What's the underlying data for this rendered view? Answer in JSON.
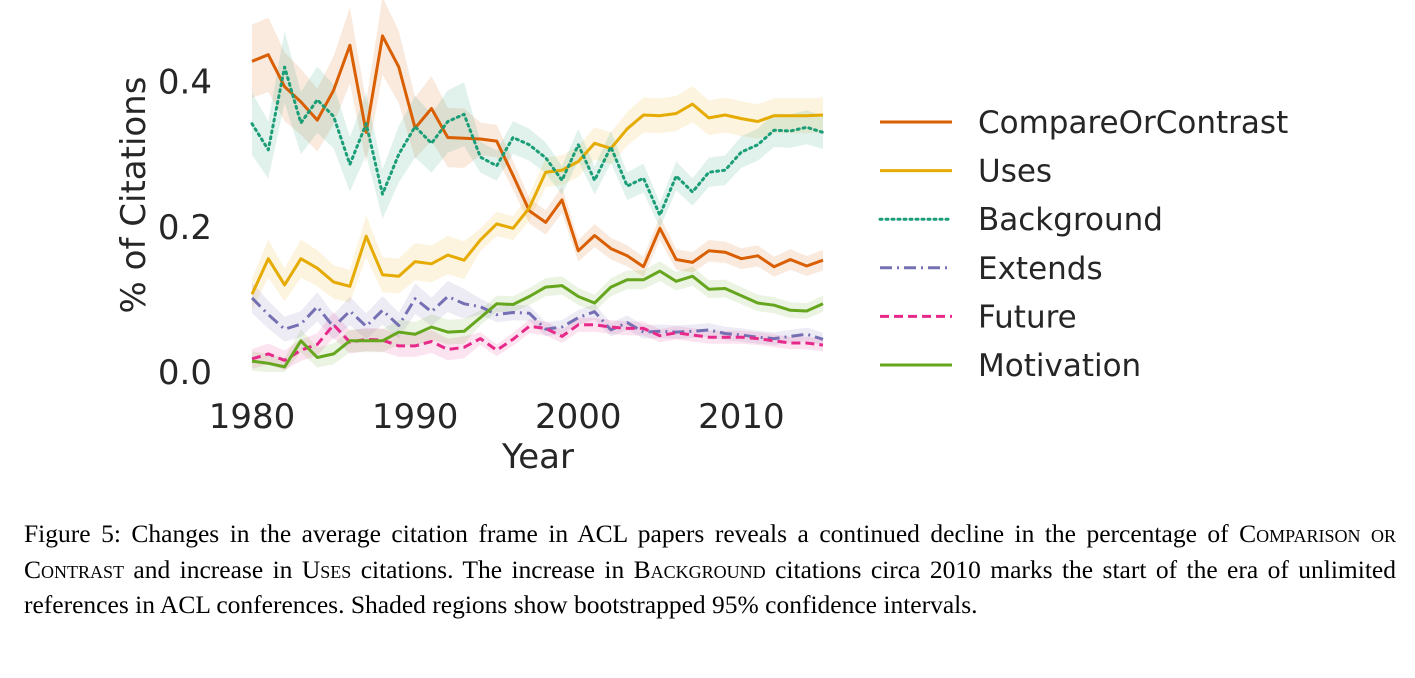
{
  "chart_data": {
    "type": "line",
    "xlabel": "Year",
    "ylabel": "% of Citations",
    "xlim": [
      1980,
      2015
    ],
    "ylim": [
      0.0,
      0.47
    ],
    "xticks": [
      "1980",
      "1990",
      "2000",
      "2010"
    ],
    "yticks": [
      "0.0",
      "0.2",
      "0.4"
    ],
    "grid": false,
    "legend_position": "right",
    "confidence_bands": true,
    "x": [
      1980,
      1981,
      1982,
      1983,
      1984,
      1985,
      1986,
      1987,
      1988,
      1989,
      1990,
      1991,
      1992,
      1993,
      1994,
      1995,
      1996,
      1997,
      1998,
      1999,
      2000,
      2001,
      2002,
      2003,
      2004,
      2005,
      2006,
      2007,
      2008,
      2009,
      2010,
      2011,
      2012,
      2013,
      2014,
      2015
    ],
    "series": [
      {
        "name": "CompareOrContrast",
        "color": "#d95f02",
        "style": "solid",
        "values": [
          0.428,
          0.437,
          0.393,
          0.372,
          0.347,
          0.388,
          0.45,
          0.33,
          0.463,
          0.42,
          0.336,
          0.363,
          0.323,
          0.322,
          0.321,
          0.318,
          0.271,
          0.222,
          0.206,
          0.237,
          0.167,
          0.188,
          0.17,
          0.16,
          0.145,
          0.198,
          0.155,
          0.151,
          0.167,
          0.165,
          0.156,
          0.16,
          0.145,
          0.155,
          0.146,
          0.154
        ]
      },
      {
        "name": "Uses",
        "color": "#e6ab02",
        "style": "solid",
        "values": [
          0.107,
          0.156,
          0.12,
          0.156,
          0.143,
          0.124,
          0.118,
          0.187,
          0.134,
          0.132,
          0.152,
          0.149,
          0.161,
          0.154,
          0.182,
          0.204,
          0.198,
          0.226,
          0.275,
          0.278,
          0.29,
          0.315,
          0.308,
          0.335,
          0.354,
          0.353,
          0.356,
          0.369,
          0.35,
          0.354,
          0.349,
          0.345,
          0.353,
          0.353,
          0.353,
          0.354
        ]
      },
      {
        "name": "Background",
        "color": "#1b9e77",
        "style": "dotted",
        "values": [
          0.342,
          0.306,
          0.42,
          0.343,
          0.375,
          0.352,
          0.286,
          0.342,
          0.245,
          0.3,
          0.338,
          0.315,
          0.345,
          0.355,
          0.296,
          0.284,
          0.323,
          0.313,
          0.295,
          0.264,
          0.313,
          0.264,
          0.31,
          0.256,
          0.267,
          0.216,
          0.27,
          0.248,
          0.275,
          0.278,
          0.303,
          0.313,
          0.333,
          0.332,
          0.337,
          0.33
        ]
      },
      {
        "name": "Extends",
        "color": "#7570b3",
        "style": "dashdot",
        "values": [
          0.102,
          0.079,
          0.059,
          0.066,
          0.09,
          0.062,
          0.084,
          0.063,
          0.085,
          0.064,
          0.101,
          0.083,
          0.104,
          0.094,
          0.09,
          0.079,
          0.082,
          0.081,
          0.059,
          0.062,
          0.075,
          0.083,
          0.058,
          0.068,
          0.055,
          0.056,
          0.055,
          0.056,
          0.058,
          0.053,
          0.051,
          0.048,
          0.046,
          0.049,
          0.052,
          0.045
        ]
      },
      {
        "name": "Future",
        "color": "#e7298a",
        "style": "dashed",
        "values": [
          0.018,
          0.025,
          0.016,
          0.03,
          0.038,
          0.065,
          0.041,
          0.045,
          0.044,
          0.036,
          0.036,
          0.042,
          0.031,
          0.034,
          0.046,
          0.03,
          0.045,
          0.063,
          0.06,
          0.049,
          0.065,
          0.065,
          0.062,
          0.06,
          0.06,
          0.05,
          0.054,
          0.051,
          0.048,
          0.048,
          0.048,
          0.046,
          0.043,
          0.04,
          0.04,
          0.037
        ]
      },
      {
        "name": "Motivation",
        "color": "#66a61e",
        "style": "solid",
        "values": [
          0.015,
          0.012,
          0.007,
          0.043,
          0.02,
          0.025,
          0.043,
          0.043,
          0.043,
          0.055,
          0.052,
          0.062,
          0.055,
          0.056,
          0.075,
          0.094,
          0.093,
          0.104,
          0.117,
          0.119,
          0.104,
          0.095,
          0.117,
          0.127,
          0.127,
          0.139,
          0.125,
          0.132,
          0.114,
          0.115,
          0.105,
          0.095,
          0.092,
          0.085,
          0.084,
          0.094
        ]
      }
    ]
  },
  "caption": {
    "p1": "Figure 5: Changes in the average citation frame in ACL papers reveals a continued decline in the percentage of ",
    "sc1": "Comparison or Contrast",
    "p2": " and increase in ",
    "sc2": "Uses",
    "p3": " citations. The increase in ",
    "sc3": "Background",
    "p4": " citations circa 2010 marks the start of the era of unlimited references in ACL conferences. Shaded regions show bootstrapped 95% confidence intervals."
  }
}
